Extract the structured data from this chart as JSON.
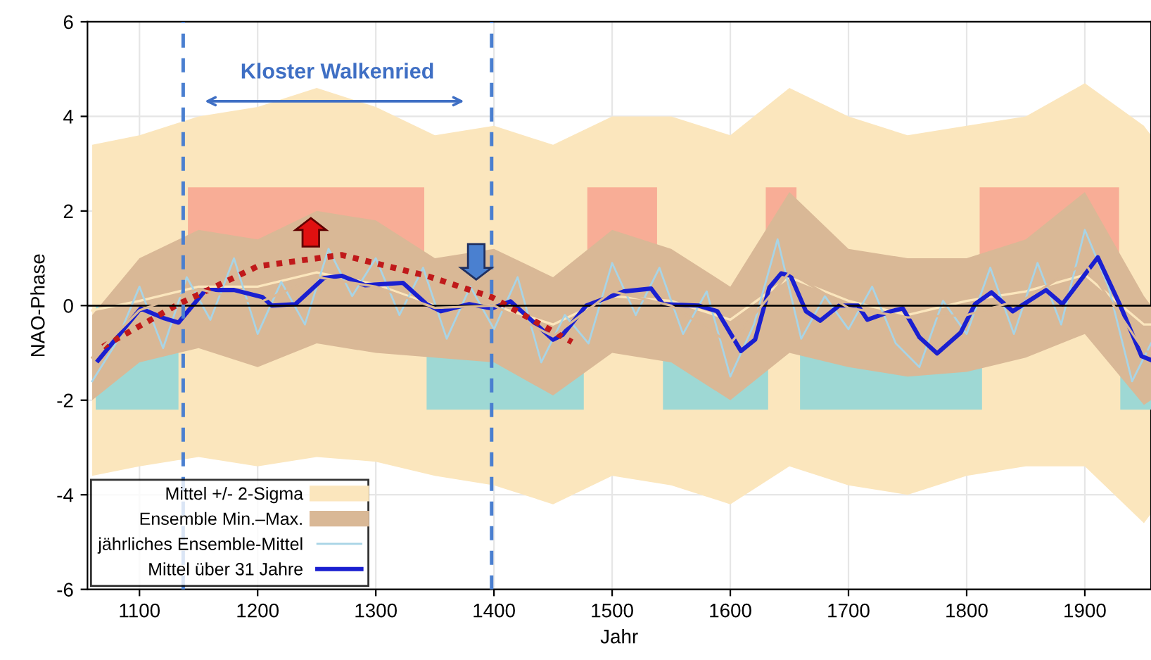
{
  "chart_data": {
    "type": "line",
    "xlabel": "Jahr",
    "ylabel": "NAO-Phase",
    "xlim": [
      1056,
      1956
    ],
    "ylim": [
      -6,
      6
    ],
    "xticks": [
      1100,
      1200,
      1300,
      1400,
      1500,
      1600,
      1700,
      1800,
      1900
    ],
    "yticks": [
      -6,
      -4,
      -2,
      0,
      2,
      4,
      6
    ],
    "grid": true,
    "legend": "bottom left",
    "series": [
      {
        "name": "Mittel +/- 2-Sigma",
        "color": "#fbe6bd",
        "x": [
          1060,
          1100,
          1150,
          1200,
          1250,
          1300,
          1350,
          1400,
          1450,
          1500,
          1550,
          1600,
          1650,
          1700,
          1750,
          1800,
          1850,
          1900,
          1950,
          1956
        ],
        "values": [
          -0.1,
          0.1,
          0.4,
          0.4,
          0.7,
          0.45,
          0,
          0,
          -0.4,
          0.2,
          0.1,
          -0.3,
          0.6,
          0.1,
          -0.2,
          0.1,
          0.3,
          0.65,
          -0.4,
          -0.4
        ],
        "lower": [
          -3.6,
          -3.4,
          -3.2,
          -3.4,
          -3.2,
          -3.3,
          -3.6,
          -3.8,
          -4.2,
          -3.6,
          -3.8,
          -4.2,
          -3.4,
          -3.8,
          -4.0,
          -3.6,
          -3.4,
          -3.4,
          -4.6,
          -4.4
        ],
        "upper": [
          3.4,
          3.6,
          4.0,
          4.2,
          4.6,
          4.2,
          3.6,
          3.8,
          3.4,
          4.0,
          4.0,
          3.6,
          4.6,
          4.0,
          3.6,
          3.8,
          4.0,
          4.7,
          3.8,
          3.6
        ]
      },
      {
        "type": "area",
        "color": "#f8ad96",
        "x": [
          1141,
          1341
        ],
        "values": [
          2.5,
          2.5
        ]
      },
      {
        "type": "area",
        "color": "#f8ad96",
        "x": [
          1479,
          1538
        ],
        "values": [
          2.5,
          2.5
        ]
      },
      {
        "type": "area",
        "color": "#f8ad96",
        "x": [
          1630,
          1656
        ],
        "values": [
          2.5,
          2.5
        ]
      },
      {
        "type": "area",
        "color": "#f8ad96",
        "x": [
          1811,
          1929
        ],
        "values": [
          2.5,
          2.5
        ]
      },
      {
        "type": "area",
        "color": "#9ed8d4",
        "x": [
          1063,
          1133
        ],
        "values": [
          -2.2,
          -2.2
        ]
      },
      {
        "type": "area",
        "color": "#9ed8d4",
        "x": [
          1343,
          1476
        ],
        "values": [
          -2.2,
          -2.2
        ]
      },
      {
        "type": "area",
        "color": "#9ed8d4",
        "x": [
          1543,
          1632
        ],
        "values": [
          -2.2,
          -2.2
        ]
      },
      {
        "type": "area",
        "color": "#9ed8d4",
        "x": [
          1659,
          1813
        ],
        "values": [
          -2.2,
          -2.2
        ]
      },
      {
        "type": "area",
        "color": "#9ed8d4",
        "x": [
          1930,
          1956
        ],
        "values": [
          -2.2,
          -2.2
        ]
      },
      {
        "name": "Ensemble Min.–Max.",
        "color": "#d9b896",
        "x": [
          1060,
          1100,
          1150,
          1200,
          1250,
          1300,
          1350,
          1400,
          1450,
          1500,
          1550,
          1600,
          1650,
          1700,
          1750,
          1800,
          1850,
          1900,
          1950,
          1956
        ],
        "values": [
          -1.1,
          -0.1,
          0.35,
          0.05,
          0.6,
          0.4,
          -0.05,
          0,
          -0.65,
          0.3,
          0,
          -0.8,
          0.7,
          -0.05,
          -0.25,
          -0.2,
          0.15,
          0.9,
          -0.95,
          -1.0
        ],
        "lower": [
          -2.0,
          -1.2,
          -0.9,
          -1.3,
          -0.8,
          -1.0,
          -1.1,
          -1.2,
          -1.9,
          -1.0,
          -1.2,
          -2.0,
          -1.0,
          -1.3,
          -1.5,
          -1.4,
          -1.1,
          -0.6,
          -2.1,
          -2.0
        ],
        "upper": [
          -0.2,
          1.0,
          1.6,
          1.4,
          2.0,
          1.8,
          1.0,
          1.2,
          0.6,
          1.6,
          1.2,
          0.4,
          2.4,
          1.2,
          1.0,
          1.0,
          1.4,
          2.4,
          0.2,
          0.0
        ]
      },
      {
        "name": "jährliches Ensemble-Mittel",
        "color": "#a8d4e6",
        "x": [
          1060,
          1080,
          1100,
          1120,
          1140,
          1160,
          1180,
          1200,
          1220,
          1240,
          1260,
          1280,
          1300,
          1320,
          1340,
          1360,
          1380,
          1400,
          1420,
          1440,
          1460,
          1480,
          1500,
          1520,
          1540,
          1560,
          1580,
          1600,
          1620,
          1640,
          1660,
          1680,
          1700,
          1720,
          1740,
          1760,
          1780,
          1800,
          1820,
          1840,
          1860,
          1880,
          1900,
          1920,
          1940,
          1956
        ],
        "values": [
          -1.6,
          -0.8,
          0.4,
          -0.9,
          0.6,
          -0.3,
          1.0,
          -0.6,
          0.5,
          -0.4,
          1.2,
          0.2,
          1.0,
          -0.2,
          0.8,
          -0.7,
          0.4,
          -0.5,
          0.6,
          -1.2,
          -0.2,
          -0.8,
          0.9,
          -0.2,
          0.8,
          -0.6,
          0.3,
          -1.5,
          -0.4,
          1.4,
          -0.7,
          0.2,
          -0.5,
          0.4,
          -0.8,
          -1.3,
          0.1,
          -0.6,
          0.8,
          -0.6,
          0.9,
          -0.4,
          1.6,
          0.4,
          -1.6,
          -0.8
        ]
      },
      {
        "name": "Mittel über 31 Jahre",
        "color": "#1a1fd0",
        "x": [
          1065,
          1101,
          1121,
          1133,
          1156,
          1180,
          1204,
          1212,
          1232,
          1256,
          1271,
          1291,
          1323,
          1343,
          1355,
          1379,
          1398,
          1414,
          1450,
          1458,
          1478,
          1510,
          1533,
          1543,
          1573,
          1589,
          1609,
          1621,
          1633,
          1643,
          1651,
          1664,
          1676,
          1692,
          1708,
          1716,
          1736,
          1746,
          1760,
          1775,
          1795,
          1807,
          1821,
          1839,
          1867,
          1881,
          1911,
          1930,
          1948,
          1956
        ],
        "values": [
          -1.16,
          -0.06,
          -0.27,
          -0.36,
          0.33,
          0.33,
          0.18,
          0,
          0.03,
          0.58,
          0.63,
          0.43,
          0.48,
          0.03,
          -0.12,
          0.03,
          -0.06,
          0.09,
          -0.72,
          -0.62,
          0,
          0.3,
          0.36,
          0.03,
          0,
          -0.12,
          -0.96,
          -0.72,
          0.38,
          0.68,
          0.63,
          -0.12,
          -0.32,
          0,
          0,
          -0.3,
          -0.12,
          -0.06,
          -0.67,
          -1.01,
          -0.57,
          0.03,
          0.28,
          -0.12,
          0.33,
          0.03,
          1.02,
          0,
          -1.07,
          -1.15
        ]
      },
      {
        "line_style": "dotted",
        "color": "#c0191a",
        "x": [
          1069,
          1133,
          1200,
          1271,
          1343,
          1398,
          1466
        ],
        "values": [
          -0.87,
          0.03,
          0.83,
          1.07,
          0.63,
          0.18,
          -0.77
        ]
      }
    ],
    "ref_lines": [
      {
        "axis": "y",
        "value": 0,
        "color": "#000000",
        "line_style": "solid"
      },
      {
        "axis": "x",
        "value": 1137,
        "color": "#4a7fd0",
        "line_style": "dashed"
      },
      {
        "axis": "x",
        "value": 1398,
        "color": "#4a7fd0",
        "line_style": "dashed"
      }
    ],
    "annotations": [
      "Kloster Walkenried"
    ]
  }
}
